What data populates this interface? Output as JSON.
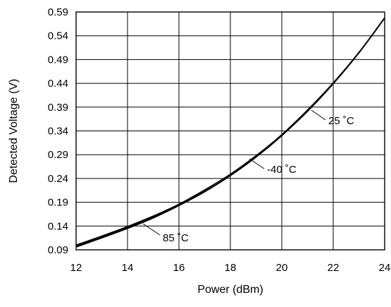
{
  "chart_data": {
    "type": "line",
    "title": "",
    "xlabel": "Power (dBm)",
    "ylabel": "Detected Voltage (V)",
    "xlim": [
      12,
      24
    ],
    "ylim": [
      0.09,
      0.59
    ],
    "x_ticks": [
      "12",
      "14",
      "16",
      "18",
      "20",
      "22",
      "24"
    ],
    "y_ticks": [
      "0.59",
      "0.54",
      "0.49",
      "0.44",
      "0.39",
      "0.34",
      "0.29",
      "0.24",
      "0.19",
      "0.14",
      "0.09"
    ],
    "grid": true,
    "series": [
      {
        "name": "25 ˚C",
        "x": [
          12,
          13,
          14,
          15,
          16,
          17,
          18,
          19,
          20,
          21,
          22,
          23,
          24
        ],
        "y": [
          0.1,
          0.119,
          0.139,
          0.161,
          0.186,
          0.216,
          0.249,
          0.288,
          0.332,
          0.383,
          0.44,
          0.505,
          0.578
        ]
      },
      {
        "name": "-40 ˚C",
        "x": [
          12,
          13,
          14,
          15,
          16,
          17,
          18,
          19,
          20,
          21,
          22,
          23,
          24
        ],
        "y": [
          0.098,
          0.117,
          0.137,
          0.159,
          0.184,
          0.213,
          0.246,
          0.285,
          0.33,
          0.381,
          0.439,
          0.504,
          0.577
        ]
      },
      {
        "name": "85 ˚C",
        "x": [
          12,
          13,
          14,
          15,
          16,
          17,
          18,
          19,
          20,
          21,
          22,
          23,
          24
        ],
        "y": [
          0.096,
          0.115,
          0.135,
          0.157,
          0.183,
          0.212,
          0.246,
          0.286,
          0.332,
          0.384,
          0.441,
          0.505,
          0.577
        ]
      }
    ],
    "annotations": [
      "25 ˚C",
      "-40 ˚C",
      "85 ˚C"
    ]
  }
}
